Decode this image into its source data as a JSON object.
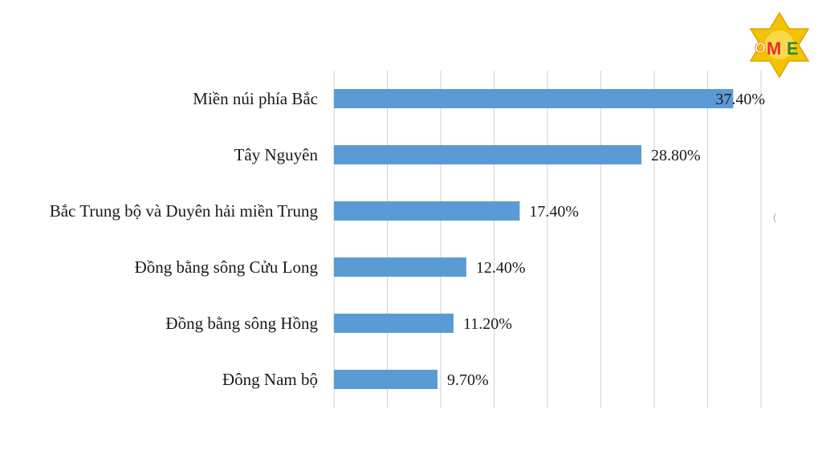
{
  "logo": {
    "text": "OME"
  },
  "chart_data": {
    "type": "bar",
    "orientation": "horizontal",
    "categories": [
      "Miền núi phía Bắc",
      "Tây Nguyên",
      "Bắc Trung bộ và Duyên hải miền Trung",
      "Đồng bằng sông Cửu Long",
      "Đồng bằng sông Hồng",
      "Đông Nam bộ"
    ],
    "values": [
      37.4,
      28.8,
      17.4,
      12.4,
      11.2,
      9.7
    ],
    "value_labels": [
      "37.40%",
      "28.80%",
      "17.40%",
      "12.40%",
      "11.20%",
      "9.70%"
    ],
    "xlim": [
      0,
      40
    ],
    "grid": true,
    "legend": "none",
    "colors": {
      "bar": "#5b9bd5",
      "grid": "#d0d0d0",
      "text": "#1a1a1a"
    }
  }
}
